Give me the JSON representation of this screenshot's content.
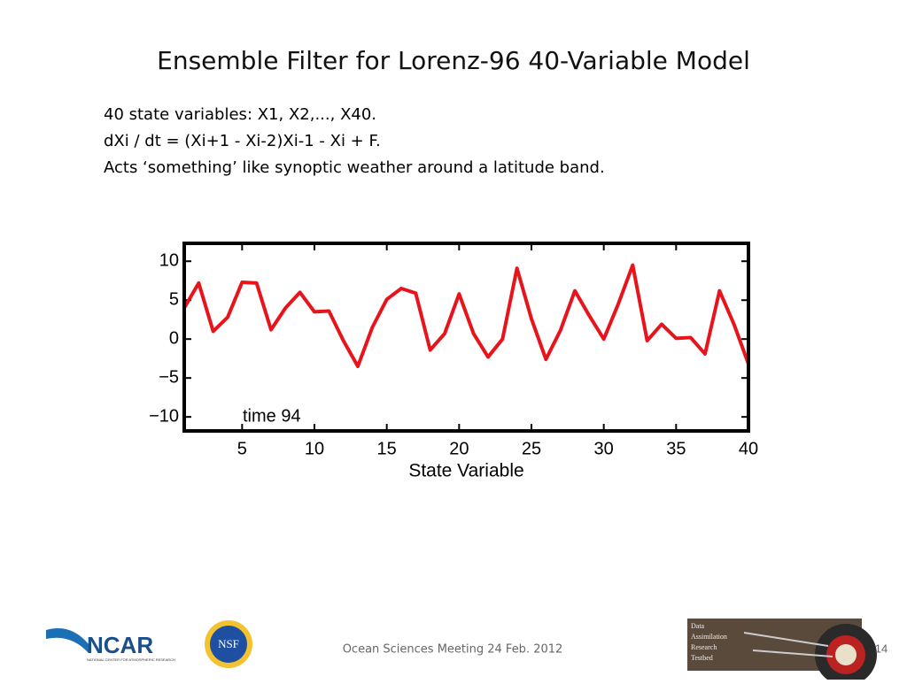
{
  "header": {
    "title": "Ensemble Filter for Lorenz-96 40-Variable Model"
  },
  "body": {
    "lines": [
      "40 state variables: X1, X2,..., X40.",
      "dXi / dt = (Xi+1 - Xi-2)Xi-1 - Xi + F.",
      "Acts ‘something’ like synoptic weather around a latitude band."
    ]
  },
  "chart_data": {
    "type": "line",
    "xlabel": "State Variable",
    "annotation": "time 94",
    "x": [
      1,
      2,
      3,
      4,
      5,
      6,
      7,
      8,
      9,
      10,
      11,
      12,
      13,
      14,
      15,
      16,
      17,
      18,
      19,
      20,
      21,
      22,
      23,
      24,
      25,
      26,
      27,
      28,
      29,
      30,
      31,
      32,
      33,
      34,
      35,
      36,
      37,
      38,
      39,
      40
    ],
    "values": [
      4.0,
      7.2,
      1.0,
      2.8,
      7.3,
      7.2,
      1.2,
      4.0,
      6.0,
      3.5,
      3.6,
      -0.2,
      -3.5,
      1.5,
      5.1,
      6.5,
      5.9,
      -1.4,
      0.7,
      5.8,
      0.7,
      -2.3,
      0,
      9.1,
      2.6,
      -2.6,
      1.1,
      6.2,
      3.0,
      0,
      4.5,
      9.5,
      -0.2,
      1.9,
      0.1,
      0.2,
      -1.9,
      6.2,
      1.9,
      -3.2
    ],
    "color": "#e8141b",
    "xlim": [
      1,
      40
    ],
    "xticks": [
      5,
      10,
      15,
      20,
      25,
      30,
      35,
      40
    ],
    "ylim": [
      -11.8,
      12.3
    ],
    "yticks": [
      {
        "value": -10,
        "label": "−10"
      },
      {
        "value": -5,
        "label": "−5"
      },
      0,
      5,
      10
    ]
  },
  "footer": {
    "ncar": "NCAR",
    "ncar_sub": "NATIONAL CENTER FOR ATMOSPHERIC RESEARCH",
    "nsf": "NSF",
    "meeting": "Ocean Sciences Meeting 24 Feb. 2012",
    "dart": [
      "Data",
      "Assimilation",
      "Research",
      "Testbed"
    ],
    "page": "14"
  }
}
